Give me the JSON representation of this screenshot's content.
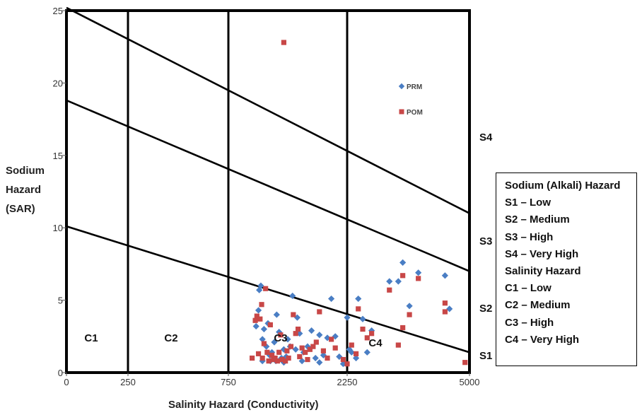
{
  "chart_data": {
    "type": "scatter",
    "title": "",
    "xlabel": "Salinity Hazard (Conductivity)",
    "ylabel": [
      "Sodium",
      "Hazard",
      "(SAR)"
    ],
    "xticks": [
      "0",
      "250",
      "750",
      "2250",
      "5000"
    ],
    "yticks": [
      "0",
      "5",
      "10",
      "15",
      "20",
      "25"
    ],
    "ylim": [
      0,
      25
    ],
    "grid": false,
    "legend_position": "top-right",
    "series": [
      {
        "name": "PRM",
        "color": "#4a7ec4",
        "marker": "diamond",
        "points": [
          [
            1100,
            3.2
          ],
          [
            1130,
            4.3
          ],
          [
            1140,
            5.7
          ],
          [
            1160,
            6.0
          ],
          [
            1180,
            2.3
          ],
          [
            1200,
            3.0
          ],
          [
            1230,
            1.8
          ],
          [
            1250,
            3.4
          ],
          [
            1270,
            1.2
          ],
          [
            1300,
            1.4
          ],
          [
            1330,
            2.1
          ],
          [
            1360,
            4.0
          ],
          [
            1390,
            2.8
          ],
          [
            1420,
            1.0
          ],
          [
            1450,
            1.6
          ],
          [
            1480,
            1.1
          ],
          [
            1500,
            2.3
          ],
          [
            1530,
            1.8
          ],
          [
            1560,
            5.3
          ],
          [
            1600,
            1.6
          ],
          [
            1620,
            3.8
          ],
          [
            1650,
            2.7
          ],
          [
            1700,
            1.4
          ],
          [
            1750,
            1.8
          ],
          [
            1800,
            2.9
          ],
          [
            1850,
            1.0
          ],
          [
            1900,
            2.6
          ],
          [
            1950,
            1.2
          ],
          [
            2000,
            2.4
          ],
          [
            2050,
            5.1
          ],
          [
            2100,
            2.5
          ],
          [
            2150,
            1.1
          ],
          [
            2250,
            3.8
          ],
          [
            2300,
            1.6
          ],
          [
            2350,
            1.4
          ],
          [
            2450,
            1.0
          ],
          [
            2500,
            5.1
          ],
          [
            2600,
            3.7
          ],
          [
            2700,
            1.4
          ],
          [
            2800,
            2.9
          ],
          [
            3200,
            6.3
          ],
          [
            3400,
            6.3
          ],
          [
            3500,
            7.6
          ],
          [
            3650,
            4.6
          ],
          [
            3850,
            6.9
          ],
          [
            4450,
            6.7
          ],
          [
            4550,
            4.4
          ],
          [
            1180,
            0.8
          ],
          [
            1280,
            0.8
          ],
          [
            1350,
            0.8
          ],
          [
            1450,
            0.7
          ],
          [
            1680,
            0.8
          ],
          [
            1900,
            0.7
          ],
          [
            2200,
            0.6
          ]
        ]
      },
      {
        "name": "POM",
        "color": "#c84747",
        "marker": "square",
        "points": [
          [
            1050,
            1.0
          ],
          [
            1090,
            3.6
          ],
          [
            1110,
            3.9
          ],
          [
            1130,
            1.3
          ],
          [
            1150,
            3.7
          ],
          [
            1170,
            4.7
          ],
          [
            1180,
            1.0
          ],
          [
            1200,
            2.0
          ],
          [
            1220,
            5.8
          ],
          [
            1240,
            1.4
          ],
          [
            1260,
            0.8
          ],
          [
            1280,
            3.3
          ],
          [
            1300,
            1.2
          ],
          [
            1320,
            0.9
          ],
          [
            1340,
            1.0
          ],
          [
            1370,
            0.8
          ],
          [
            1390,
            1.4
          ],
          [
            1410,
            2.6
          ],
          [
            1430,
            0.9
          ],
          [
            1450,
            22.8
          ],
          [
            1470,
            0.8
          ],
          [
            1490,
            1.5
          ],
          [
            1510,
            1.0
          ],
          [
            1540,
            1.8
          ],
          [
            1570,
            4.0
          ],
          [
            1600,
            2.7
          ],
          [
            1630,
            3.0
          ],
          [
            1650,
            1.1
          ],
          [
            1680,
            1.7
          ],
          [
            1720,
            1.4
          ],
          [
            1750,
            0.9
          ],
          [
            1780,
            1.6
          ],
          [
            1820,
            1.8
          ],
          [
            1860,
            2.1
          ],
          [
            1900,
            4.2
          ],
          [
            1950,
            1.5
          ],
          [
            2000,
            1.0
          ],
          [
            2050,
            2.3
          ],
          [
            2100,
            1.7
          ],
          [
            2200,
            0.9
          ],
          [
            2250,
            0.6
          ],
          [
            2350,
            1.9
          ],
          [
            2450,
            1.3
          ],
          [
            2500,
            4.4
          ],
          [
            2600,
            3.0
          ],
          [
            2700,
            2.4
          ],
          [
            2800,
            2.7
          ],
          [
            3200,
            5.7
          ],
          [
            3400,
            1.9
          ],
          [
            3500,
            6.7
          ],
          [
            3500,
            3.1
          ],
          [
            3650,
            4.0
          ],
          [
            3850,
            6.5
          ],
          [
            4450,
            4.2
          ],
          [
            4450,
            4.8
          ],
          [
            4900,
            0.7
          ]
        ]
      }
    ],
    "boundary_lines": [
      {
        "name": "S1",
        "y_left": 10.1,
        "y_right": 1.4
      },
      {
        "name": "S2",
        "y_left": 18.8,
        "y_right": 7.0
      },
      {
        "name": "S3",
        "y_left": 25.2,
        "y_right": 11.0
      }
    ],
    "vertical_dividers": [
      "250",
      "750",
      "2250"
    ],
    "zone_labels": {
      "salinity": [
        "C1",
        "C2",
        "C3",
        "C4"
      ],
      "sodium": [
        "S1",
        "S2",
        "S3",
        "S4"
      ]
    }
  },
  "info_box": {
    "lines": [
      "Sodium (Alkali) Hazard",
      "S1 – Low",
      "S2 – Medium",
      "S3 – High",
      "S4 – Very High",
      "Salinity Hazard",
      "C1 – Low",
      "C2 – Medium",
      "C3 – High",
      "C4 – Very High"
    ]
  }
}
